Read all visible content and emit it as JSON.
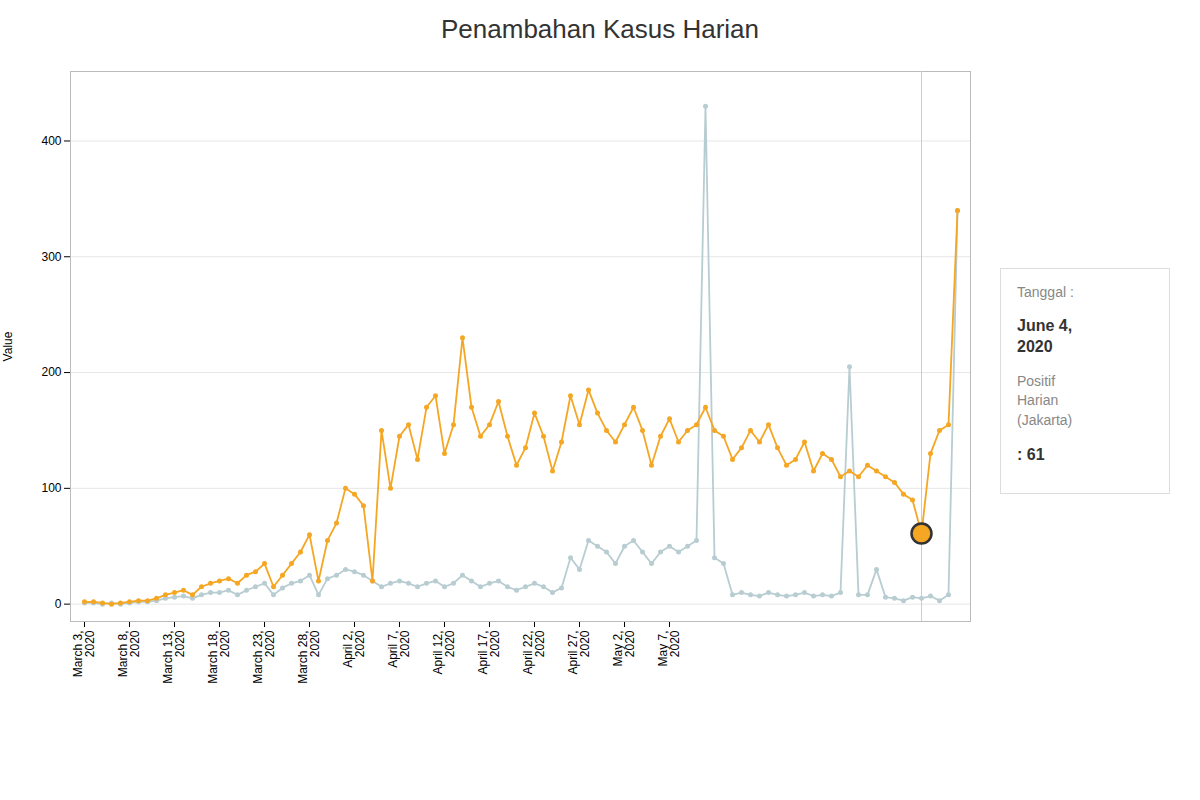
{
  "chart_data": {
    "type": "line",
    "title": "Penambahan Kasus Harian",
    "ylabel": "Value",
    "categories": [
      "March 3,\n2020",
      null,
      null,
      null,
      null,
      "March 8,\n2020",
      null,
      null,
      null,
      null,
      "March 13,\n2020",
      null,
      null,
      null,
      null,
      "March 18,\n2020",
      null,
      null,
      null,
      null,
      "March 23,\n2020",
      null,
      null,
      null,
      null,
      "March 28,\n2020",
      null,
      null,
      null,
      null,
      "April 2,\n2020",
      null,
      null,
      null,
      null,
      "April 7,\n2020",
      null,
      null,
      null,
      null,
      "April 12,\n2020",
      null,
      null,
      null,
      null,
      "April 17,\n2020",
      null,
      null,
      null,
      null,
      "April 22,\n2020",
      null,
      null,
      null,
      null,
      "April 27,\n2020",
      null,
      null,
      null,
      null,
      "May 2,\n2020",
      null,
      null,
      null,
      null,
      "May 7,\n2020",
      null,
      null,
      null,
      null,
      null,
      null,
      null,
      null,
      null,
      null,
      null,
      null,
      null,
      null,
      null,
      null,
      null,
      null,
      null,
      null,
      null,
      null,
      null,
      null,
      null,
      null,
      null,
      null,
      null,
      null,
      null,
      null
    ],
    "series": [
      {
        "color": "#b8cdd1",
        "marker": "circle",
        "values": [
          1,
          1,
          0,
          1,
          0,
          1,
          2,
          2,
          3,
          5,
          6,
          7,
          5,
          8,
          10,
          10,
          12,
          8,
          12,
          15,
          18,
          8,
          14,
          18,
          20,
          25,
          8,
          22,
          25,
          30,
          28,
          25,
          20,
          15,
          18,
          20,
          18,
          15,
          18,
          20,
          15,
          18,
          25,
          20,
          15,
          18,
          20,
          15,
          12,
          15,
          18,
          15,
          10,
          14,
          40,
          30,
          55,
          50,
          45,
          35,
          50,
          55,
          45,
          35,
          45,
          50,
          45,
          50,
          55,
          430,
          40,
          35,
          8,
          10,
          8,
          7,
          10,
          8,
          7,
          8,
          10,
          7,
          8,
          7,
          10,
          205,
          8,
          8,
          30,
          6,
          5,
          3,
          6,
          5,
          7,
          3,
          8,
          340
        ]
      },
      {
        "color": "#f5a623",
        "marker": "circle",
        "values": [
          2,
          2,
          1,
          0,
          1,
          2,
          3,
          3,
          5,
          8,
          10,
          12,
          8,
          15,
          18,
          20,
          22,
          18,
          25,
          28,
          35,
          15,
          25,
          35,
          45,
          60,
          20,
          55,
          70,
          100,
          95,
          85,
          20,
          150,
          100,
          145,
          155,
          125,
          170,
          180,
          130,
          155,
          230,
          170,
          145,
          155,
          175,
          145,
          120,
          135,
          165,
          145,
          115,
          140,
          180,
          155,
          185,
          165,
          150,
          140,
          155,
          170,
          150,
          120,
          145,
          160,
          140,
          150,
          155,
          170,
          150,
          145,
          125,
          135,
          150,
          140,
          155,
          135,
          120,
          125,
          140,
          115,
          130,
          125,
          110,
          115,
          110,
          120,
          115,
          110,
          105,
          95,
          90,
          61,
          130,
          150,
          155,
          340
        ]
      }
    ],
    "tooltip": {
      "index": 93,
      "value": 61,
      "color": "#f5a623",
      "ring_color": "#333333",
      "texts": [
        "Tanggal :",
        "June 4,\n2020",
        "Positif\nHarian\n(Jakarta)",
        ": 61"
      ]
    },
    "ylim": [
      -15,
      460
    ],
    "yticks": [
      0,
      100,
      200,
      300,
      400
    ],
    "grid": true
  }
}
